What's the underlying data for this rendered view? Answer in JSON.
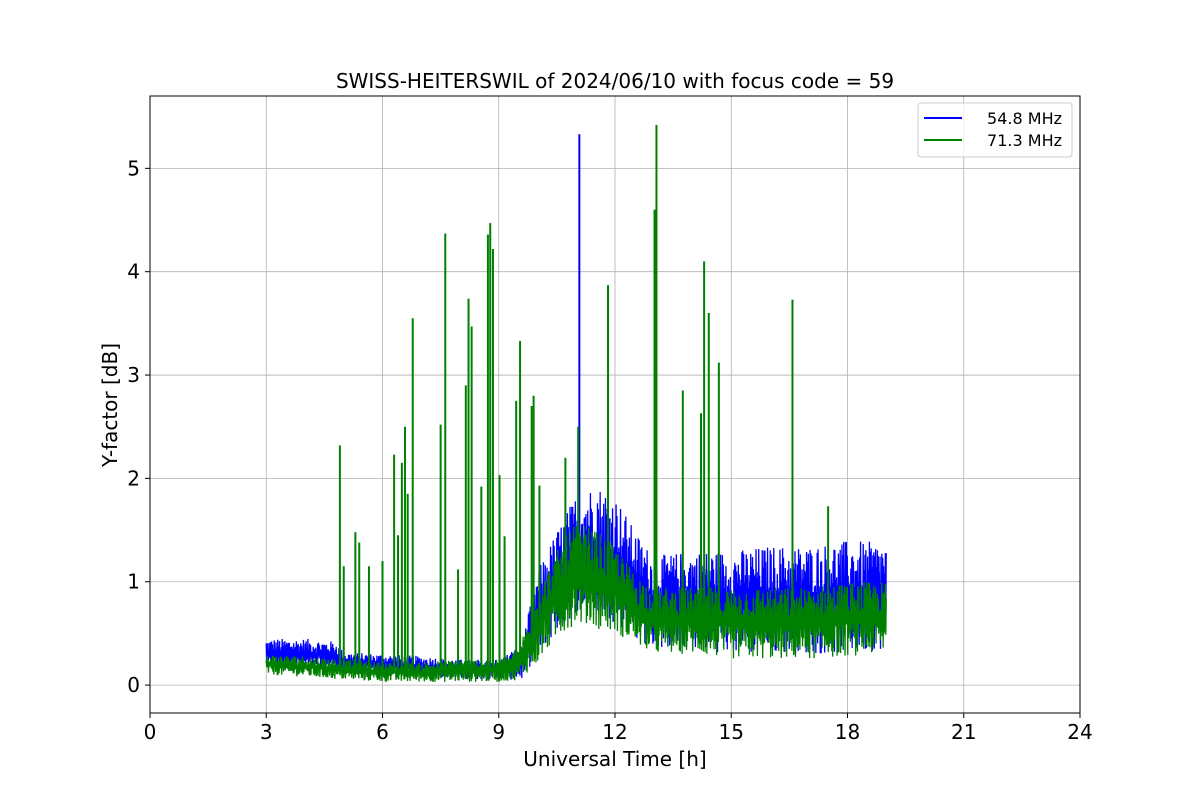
{
  "chart_data": {
    "type": "line",
    "title": "SWISS-HEITERSWIL of 2024/06/10 with focus code = 59",
    "xlabel": "Universal Time [h]",
    "ylabel": "Y-factor [dB]",
    "xlim": [
      0,
      24
    ],
    "ylim": [
      -0.27,
      5.7
    ],
    "xticks": [
      0,
      3,
      6,
      9,
      12,
      15,
      18,
      21,
      24
    ],
    "yticks": [
      0,
      1,
      2,
      3,
      4,
      5
    ],
    "grid": true,
    "legend_position": "top-right",
    "series": [
      {
        "name": "54.8 MHz",
        "color": "#0000ff",
        "envelope": [
          {
            "x": 3.0,
            "low": 0.15,
            "high": 0.45
          },
          {
            "x": 4.0,
            "low": 0.15,
            "high": 0.45
          },
          {
            "x": 4.8,
            "low": 0.15,
            "high": 0.42
          },
          {
            "x": 5.0,
            "low": 0.12,
            "high": 0.32
          },
          {
            "x": 6.0,
            "low": 0.1,
            "high": 0.3
          },
          {
            "x": 7.0,
            "low": 0.08,
            "high": 0.28
          },
          {
            "x": 8.0,
            "low": 0.06,
            "high": 0.25
          },
          {
            "x": 9.0,
            "low": 0.05,
            "high": 0.25
          },
          {
            "x": 9.6,
            "low": 0.05,
            "high": 0.4
          },
          {
            "x": 10.0,
            "low": 0.3,
            "high": 1.1
          },
          {
            "x": 10.5,
            "low": 0.5,
            "high": 1.5
          },
          {
            "x": 11.0,
            "low": 0.7,
            "high": 1.85
          },
          {
            "x": 11.5,
            "low": 0.7,
            "high": 1.95
          },
          {
            "x": 12.0,
            "low": 0.6,
            "high": 1.85
          },
          {
            "x": 12.5,
            "low": 0.45,
            "high": 1.5
          },
          {
            "x": 13.0,
            "low": 0.35,
            "high": 1.25
          },
          {
            "x": 14.0,
            "low": 0.35,
            "high": 1.3
          },
          {
            "x": 15.0,
            "low": 0.3,
            "high": 1.3
          },
          {
            "x": 16.0,
            "low": 0.3,
            "high": 1.35
          },
          {
            "x": 17.0,
            "low": 0.3,
            "high": 1.35
          },
          {
            "x": 18.0,
            "low": 0.3,
            "high": 1.4
          },
          {
            "x": 19.0,
            "low": 0.35,
            "high": 1.38
          }
        ],
        "spikes": [
          {
            "x": 11.08,
            "y": 5.33
          }
        ]
      },
      {
        "name": "71.3 MHz",
        "color": "#008000",
        "envelope": [
          {
            "x": 3.0,
            "low": 0.1,
            "high": 0.3
          },
          {
            "x": 4.0,
            "low": 0.08,
            "high": 0.28
          },
          {
            "x": 5.0,
            "low": 0.05,
            "high": 0.25
          },
          {
            "x": 6.0,
            "low": 0.03,
            "high": 0.22
          },
          {
            "x": 7.0,
            "low": 0.03,
            "high": 0.22
          },
          {
            "x": 8.0,
            "low": 0.03,
            "high": 0.25
          },
          {
            "x": 9.0,
            "low": 0.03,
            "high": 0.25
          },
          {
            "x": 9.5,
            "low": 0.05,
            "high": 0.35
          },
          {
            "x": 10.0,
            "low": 0.2,
            "high": 0.9
          },
          {
            "x": 10.5,
            "low": 0.45,
            "high": 1.3
          },
          {
            "x": 11.0,
            "low": 0.6,
            "high": 1.6
          },
          {
            "x": 11.5,
            "low": 0.55,
            "high": 1.5
          },
          {
            "x": 12.0,
            "low": 0.5,
            "high": 1.35
          },
          {
            "x": 12.5,
            "low": 0.4,
            "high": 1.1
          },
          {
            "x": 13.0,
            "low": 0.3,
            "high": 0.95
          },
          {
            "x": 14.0,
            "low": 0.3,
            "high": 0.95
          },
          {
            "x": 15.0,
            "low": 0.25,
            "high": 0.95
          },
          {
            "x": 16.0,
            "low": 0.25,
            "high": 0.95
          },
          {
            "x": 17.0,
            "low": 0.25,
            "high": 0.95
          },
          {
            "x": 18.0,
            "low": 0.28,
            "high": 1.0
          },
          {
            "x": 19.0,
            "low": 0.3,
            "high": 1.0
          }
        ],
        "spikes": [
          {
            "x": 4.9,
            "y": 2.32
          },
          {
            "x": 5.0,
            "y": 1.15
          },
          {
            "x": 5.3,
            "y": 1.48
          },
          {
            "x": 5.4,
            "y": 1.38
          },
          {
            "x": 5.65,
            "y": 1.15
          },
          {
            "x": 6.0,
            "y": 1.2
          },
          {
            "x": 6.3,
            "y": 2.23
          },
          {
            "x": 6.4,
            "y": 1.45
          },
          {
            "x": 6.5,
            "y": 2.15
          },
          {
            "x": 6.58,
            "y": 2.5
          },
          {
            "x": 6.65,
            "y": 1.85
          },
          {
            "x": 6.78,
            "y": 3.55
          },
          {
            "x": 7.5,
            "y": 2.52
          },
          {
            "x": 7.62,
            "y": 4.37
          },
          {
            "x": 7.95,
            "y": 1.12
          },
          {
            "x": 8.15,
            "y": 2.9
          },
          {
            "x": 8.22,
            "y": 3.74
          },
          {
            "x": 8.3,
            "y": 3.47
          },
          {
            "x": 8.55,
            "y": 1.92
          },
          {
            "x": 8.72,
            "y": 4.36
          },
          {
            "x": 8.78,
            "y": 4.47
          },
          {
            "x": 8.85,
            "y": 4.22
          },
          {
            "x": 9.02,
            "y": 2.03
          },
          {
            "x": 9.15,
            "y": 1.44
          },
          {
            "x": 9.45,
            "y": 2.75
          },
          {
            "x": 9.55,
            "y": 3.33
          },
          {
            "x": 9.85,
            "y": 2.7
          },
          {
            "x": 9.9,
            "y": 2.8
          },
          {
            "x": 10.05,
            "y": 1.93
          },
          {
            "x": 10.72,
            "y": 2.2
          },
          {
            "x": 11.05,
            "y": 2.5
          },
          {
            "x": 11.82,
            "y": 3.87
          },
          {
            "x": 13.02,
            "y": 4.6
          },
          {
            "x": 13.07,
            "y": 5.42
          },
          {
            "x": 13.75,
            "y": 2.85
          },
          {
            "x": 14.22,
            "y": 2.63
          },
          {
            "x": 14.3,
            "y": 4.1
          },
          {
            "x": 14.42,
            "y": 3.6
          },
          {
            "x": 14.68,
            "y": 3.12
          },
          {
            "x": 16.58,
            "y": 3.73
          },
          {
            "x": 17.5,
            "y": 1.73
          }
        ]
      }
    ]
  }
}
